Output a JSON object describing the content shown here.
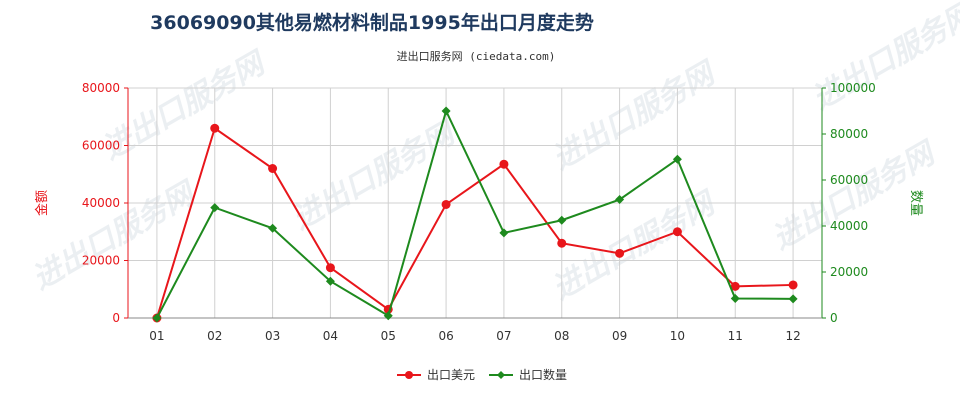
{
  "chart_data": {
    "type": "line",
    "title": "36069090其他易燃材料制品1995年出口月度走势",
    "subtitle": "进出口服务网 (ciedata.com)",
    "categories": [
      "01",
      "02",
      "03",
      "04",
      "05",
      "06",
      "07",
      "08",
      "09",
      "10",
      "11",
      "12"
    ],
    "y_left": {
      "label": "金额",
      "ylim": [
        0,
        80000
      ],
      "ticks": [
        "0",
        "20000",
        "40000",
        "60000",
        "80000"
      ],
      "color": "#e8161b"
    },
    "y_right": {
      "label": "数量",
      "ylim": [
        0,
        100000
      ],
      "ticks": [
        "0",
        "20000",
        "40000",
        "60000",
        "80000",
        "100000"
      ],
      "color": "#1e8a1e"
    },
    "series": [
      {
        "name": "出口美元",
        "axis": "left",
        "color": "#e8161b",
        "marker": "circle",
        "values": [
          0,
          66000,
          52000,
          17500,
          3000,
          39500,
          53500,
          26000,
          22500,
          30000,
          11000,
          11500
        ]
      },
      {
        "name": "出口数量",
        "axis": "right",
        "color": "#1e8a1e",
        "marker": "diamond",
        "values": [
          0,
          48000,
          39000,
          16000,
          1000,
          90000,
          37000,
          42500,
          51500,
          69000,
          8500,
          8300
        ]
      }
    ],
    "grid": true,
    "legend_position": "bottom-center",
    "watermark": "进出口服务网"
  }
}
